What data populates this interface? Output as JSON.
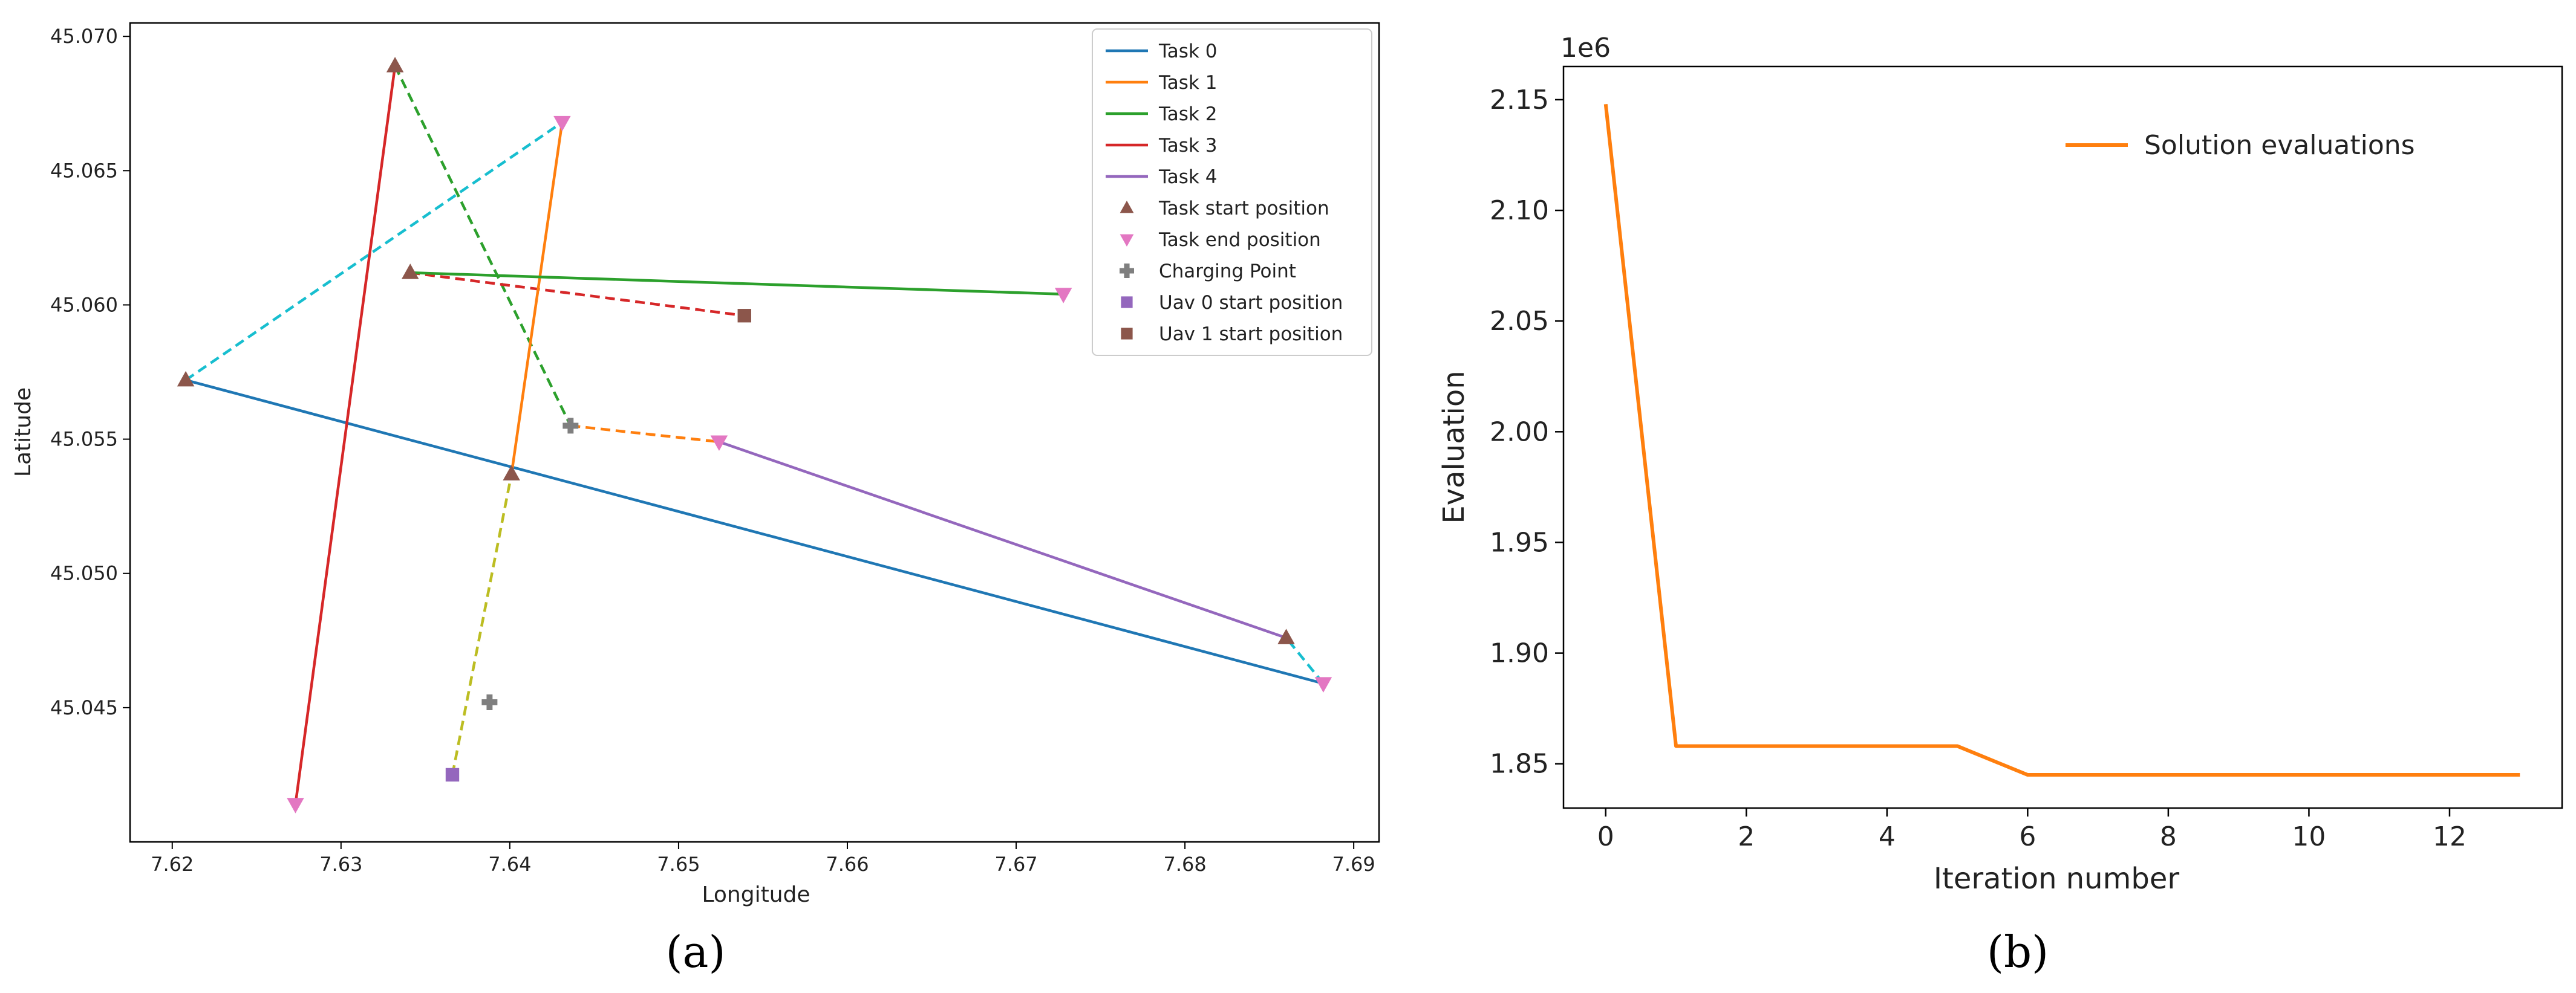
{
  "figure": {
    "caption_a": "(a)",
    "caption_b": "(b)"
  },
  "colors": {
    "task0": "#1f77b4",
    "task1": "#ff7f0e",
    "task2": "#2ca02c",
    "task3": "#d62728",
    "task4": "#9467bd",
    "start_marker": "#8c564b",
    "end_marker": "#e377c2",
    "charging": "#7f7f7f",
    "uav0": "#9467bd",
    "uav1": "#8c564b",
    "teal_dashed": "#17becf",
    "olive_dashed": "#bcbd22",
    "curve": "#ff7f0e"
  },
  "chart_data": [
    {
      "id": "a",
      "type": "line",
      "xlabel": "Longitude",
      "ylabel": "Latitude",
      "xlim": [
        7.6175,
        7.6915
      ],
      "ylim": [
        45.04,
        45.0705
      ],
      "xticks": [
        7.62,
        7.63,
        7.64,
        7.65,
        7.66,
        7.67,
        7.68,
        7.69
      ],
      "xtick_labels": [
        "7.62",
        "7.63",
        "7.64",
        "7.65",
        "7.66",
        "7.67",
        "7.68",
        "7.69"
      ],
      "yticks": [
        45.045,
        45.05,
        45.055,
        45.06,
        45.065,
        45.07
      ],
      "ytick_labels": [
        "45.045",
        "45.050",
        "45.055",
        "45.060",
        "45.065",
        "45.070"
      ],
      "tasks": [
        {
          "name": "Task 0",
          "color": "#1f77b4",
          "start": [
            7.6208,
            45.0572
          ],
          "end": [
            7.6882,
            45.0459
          ]
        },
        {
          "name": "Task 1",
          "color": "#ff7f0e",
          "start": [
            7.6401,
            45.0537
          ],
          "end": [
            7.6431,
            45.0668
          ]
        },
        {
          "name": "Task 2",
          "color": "#2ca02c",
          "start": [
            7.6341,
            45.0612
          ],
          "end": [
            7.6728,
            45.0604
          ]
        },
        {
          "name": "Task 3",
          "color": "#d62728",
          "start": [
            7.6332,
            45.0689
          ],
          "end": [
            7.6273,
            45.0414
          ]
        },
        {
          "name": "Task 4",
          "color": "#9467bd",
          "start": [
            7.686,
            45.0476
          ],
          "end": [
            7.6524,
            45.0549
          ]
        }
      ],
      "transitions": [
        {
          "color": "#17becf",
          "points": [
            [
              7.6208,
              45.0572
            ],
            [
              7.6431,
              45.0668
            ]
          ]
        },
        {
          "color": "#17becf",
          "points": [
            [
              7.6882,
              45.0459
            ],
            [
              7.686,
              45.0476
            ]
          ]
        },
        {
          "color": "#2ca02c",
          "points": [
            [
              7.6332,
              45.0689
            ],
            [
              7.6436,
              45.0555
            ]
          ]
        },
        {
          "color": "#ff7f0e",
          "points": [
            [
              7.6436,
              45.0555
            ],
            [
              7.6524,
              45.0549
            ]
          ]
        },
        {
          "color": "#d62728",
          "points": [
            [
              7.6341,
              45.0612
            ],
            [
              7.6539,
              45.0596
            ]
          ]
        },
        {
          "color": "#bcbd22",
          "points": [
            [
              7.6366,
              45.0425
            ],
            [
              7.6401,
              45.0537
            ]
          ]
        }
      ],
      "task_starts": [
        [
          7.6208,
          45.0572
        ],
        [
          7.6401,
          45.0537
        ],
        [
          7.6341,
          45.0612
        ],
        [
          7.6332,
          45.0689
        ],
        [
          7.686,
          45.0476
        ]
      ],
      "task_ends": [
        [
          7.6882,
          45.0459
        ],
        [
          7.6431,
          45.0668
        ],
        [
          7.6728,
          45.0604
        ],
        [
          7.6273,
          45.0414
        ],
        [
          7.6524,
          45.0549
        ]
      ],
      "charging_points": [
        [
          7.6388,
          45.0452
        ],
        [
          7.6436,
          45.0555
        ]
      ],
      "uav0_start": [
        7.6366,
        45.0425
      ],
      "uav1_start": [
        7.6539,
        45.0596
      ],
      "legend": [
        {
          "label": "Task 0",
          "kind": "line",
          "color": "#1f77b4"
        },
        {
          "label": "Task 1",
          "kind": "line",
          "color": "#ff7f0e"
        },
        {
          "label": "Task 2",
          "kind": "line",
          "color": "#2ca02c"
        },
        {
          "label": "Task 3",
          "kind": "line",
          "color": "#d62728"
        },
        {
          "label": "Task 4",
          "kind": "line",
          "color": "#9467bd"
        },
        {
          "label": "Task start position",
          "kind": "tri-up",
          "color": "#8c564b"
        },
        {
          "label": "Task end position",
          "kind": "tri-down",
          "color": "#e377c2"
        },
        {
          "label": "Charging Point",
          "kind": "plus",
          "color": "#7f7f7f"
        },
        {
          "label": "Uav 0 start position",
          "kind": "square",
          "color": "#9467bd"
        },
        {
          "label": "Uav 1 start position",
          "kind": "square",
          "color": "#8c564b"
        }
      ],
      "legend_position": "top-right"
    },
    {
      "id": "b",
      "type": "line",
      "xlabel": "Iteration number",
      "ylabel": "Evaluation",
      "offset_label": "1e6",
      "xlim": [
        -0.6,
        13.6
      ],
      "ylim": [
        1.83,
        2.165
      ],
      "xticks": [
        0,
        2,
        4,
        6,
        8,
        10,
        12
      ],
      "xtick_labels": [
        "0",
        "2",
        "4",
        "6",
        "8",
        "10",
        "12"
      ],
      "yticks": [
        1.85,
        1.9,
        1.95,
        2.0,
        2.05,
        2.1,
        2.15
      ],
      "ytick_labels": [
        "1.85",
        "1.90",
        "1.95",
        "2.00",
        "2.05",
        "2.10",
        "2.15"
      ],
      "series": [
        {
          "name": "Solution evaluations",
          "color": "#ff7f0e",
          "x": [
            0,
            1,
            2,
            3,
            4,
            5,
            6,
            7,
            8,
            9,
            10,
            11,
            12,
            13
          ],
          "values": [
            2.148,
            1.858,
            1.858,
            1.858,
            1.858,
            1.858,
            1.845,
            1.845,
            1.845,
            1.845,
            1.845,
            1.845,
            1.845,
            1.845
          ]
        }
      ],
      "legend": [
        {
          "label": "Solution evaluations",
          "kind": "line",
          "color": "#ff7f0e"
        }
      ],
      "legend_position": "top-right"
    }
  ]
}
